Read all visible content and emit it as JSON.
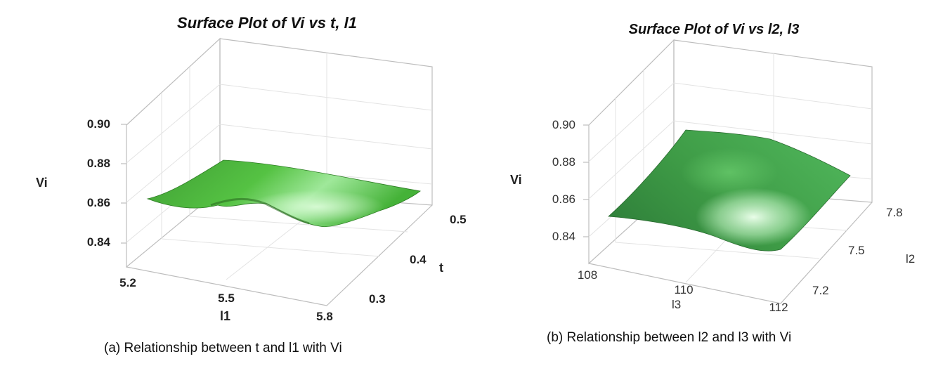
{
  "chart_data": [
    {
      "type": "surface",
      "title": "Surface Plot of Vi vs t, l1",
      "z_label": "Vi",
      "x_label": "l1",
      "y_label": "t",
      "z_ticks": [
        "0.90",
        "0.88",
        "0.86",
        "0.84"
      ],
      "x_ticks": [
        "5.2",
        "5.5",
        "5.8"
      ],
      "y_ticks": [
        "0.3",
        "0.4",
        "0.5"
      ],
      "zlim": [
        0.835,
        0.905
      ],
      "xlim": [
        5.2,
        5.8
      ],
      "ylim": [
        0.3,
        0.5
      ],
      "surface_color": "#4caf2e",
      "caption": "(a)   Relationship between t and l1 with Vi"
    },
    {
      "type": "surface",
      "title": "Surface Plot of Vi vs l2, l3",
      "z_label": "Vi",
      "x_label": "l3",
      "y_label": "l2",
      "z_ticks": [
        "0.90",
        "0.88",
        "0.86",
        "0.84"
      ],
      "x_ticks": [
        "108",
        "110",
        "112"
      ],
      "y_ticks": [
        "7.2",
        "7.5",
        "7.8"
      ],
      "zlim": [
        0.835,
        0.905
      ],
      "xlim": [
        108,
        112
      ],
      "ylim": [
        7.2,
        7.8
      ],
      "surface_color": "#3e9a48",
      "caption": "(b) Relationship between l2 and l3 with Vi"
    }
  ]
}
